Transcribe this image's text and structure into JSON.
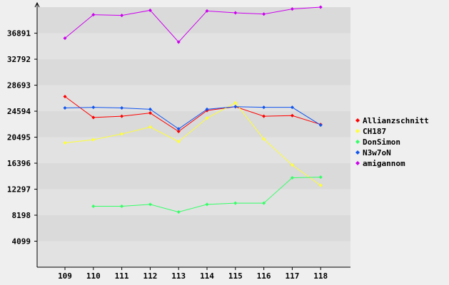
{
  "chart_data": {
    "type": "line",
    "categories": [
      "109",
      "110",
      "111",
      "112",
      "113",
      "114",
      "115",
      "116",
      "117",
      "118"
    ],
    "y_ticks": [
      4099,
      8198,
      12297,
      16396,
      20495,
      24594,
      28693,
      32792,
      36891
    ],
    "ylim": [
      0,
      41000
    ],
    "grid": "horizontal bands",
    "legend_position": "right",
    "series": [
      {
        "name": "Allianzschnitt",
        "color": "#ff0000",
        "values": [
          26900,
          23600,
          23800,
          24300,
          21400,
          24700,
          25300,
          23800,
          23900,
          22500
        ]
      },
      {
        "name": "CH187",
        "color": "#ffff33",
        "values": [
          19600,
          20100,
          21000,
          22100,
          19800,
          23500,
          25900,
          20200,
          16100,
          12900
        ]
      },
      {
        "name": "DonSimon",
        "color": "#33ff66",
        "values": [
          null,
          9600,
          9600,
          9900,
          8700,
          9900,
          10100,
          10100,
          14100,
          14200
        ]
      },
      {
        "name": "N3w7oN",
        "color": "#1155ee",
        "values": [
          25100,
          25200,
          25100,
          24900,
          21800,
          24900,
          25300,
          25200,
          25200,
          22400
        ]
      },
      {
        "name": "amigannom",
        "color": "#cc00ee",
        "values": [
          36100,
          39800,
          39700,
          40500,
          35500,
          40400,
          40100,
          39900,
          40700,
          41000
        ]
      }
    ]
  }
}
